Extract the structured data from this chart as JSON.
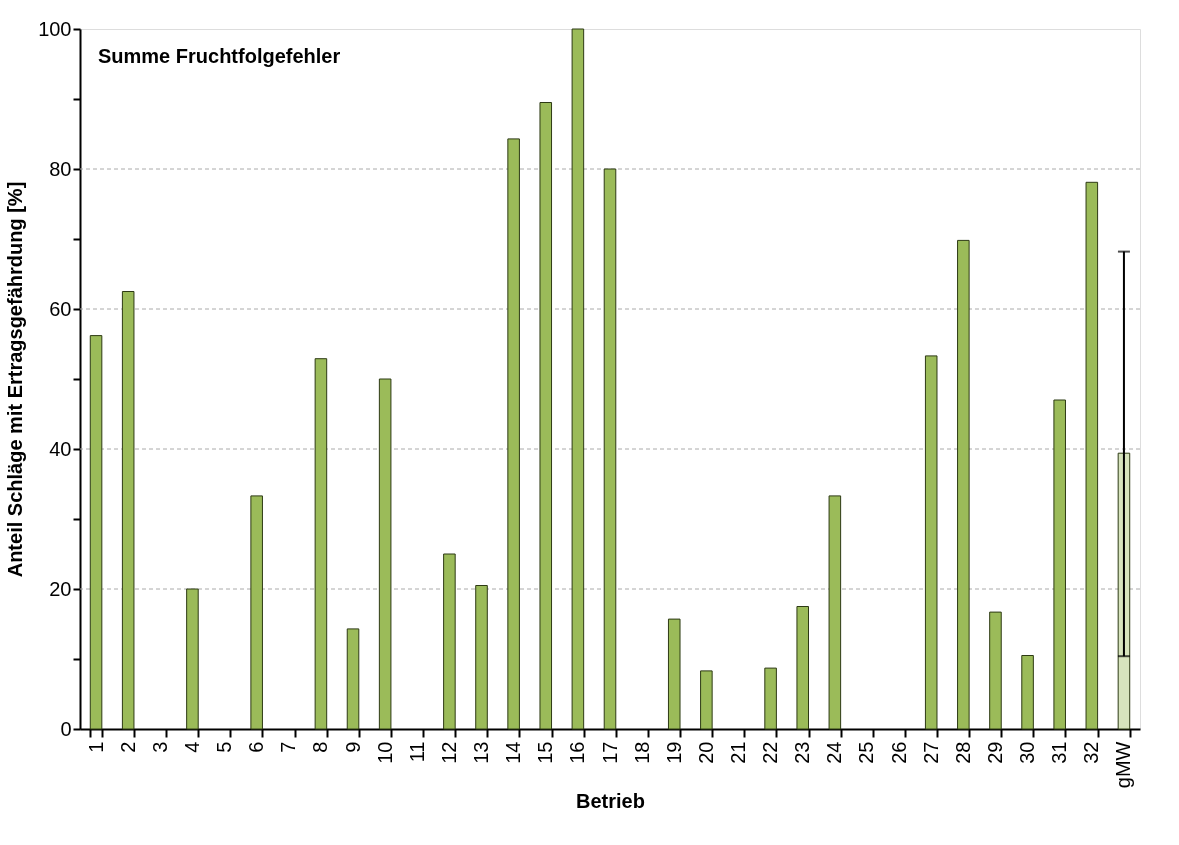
{
  "chart_data": {
    "type": "bar",
    "title": "Summe Fruchtfolgefehler",
    "xlabel": "Betrieb",
    "ylabel": "Anteil  Schläge mit Ertragsgefährdung  [%]",
    "categories": [
      "1",
      "2",
      "3",
      "4",
      "5",
      "6",
      "7",
      "8",
      "9",
      "10",
      "11",
      "12",
      "13",
      "14",
      "15",
      "16",
      "17",
      "18",
      "19",
      "20",
      "21",
      "22",
      "23",
      "24",
      "25",
      "26",
      "27",
      "28",
      "29",
      "30",
      "31",
      "32",
      "gMW"
    ],
    "values": [
      56.2,
      62.5,
      0,
      20,
      0,
      33.3,
      0,
      52.9,
      14.3,
      50,
      0,
      25,
      20.5,
      84.3,
      89.5,
      100,
      80,
      0,
      15.7,
      8.3,
      0,
      8.7,
      17.5,
      33.3,
      0,
      0,
      53.3,
      69.8,
      16.7,
      10.5,
      47,
      78.1,
      39.4
    ],
    "colors": [
      "#9bbb59",
      "#9bbb59",
      "#9bbb59",
      "#9bbb59",
      "#9bbb59",
      "#9bbb59",
      "#9bbb59",
      "#9bbb59",
      "#9bbb59",
      "#9bbb59",
      "#9bbb59",
      "#9bbb59",
      "#9bbb59",
      "#9bbb59",
      "#9bbb59",
      "#9bbb59",
      "#9bbb59",
      "#9bbb59",
      "#9bbb59",
      "#9bbb59",
      "#9bbb59",
      "#9bbb59",
      "#9bbb59",
      "#9bbb59",
      "#9bbb59",
      "#9bbb59",
      "#9bbb59",
      "#9bbb59",
      "#9bbb59",
      "#9bbb59",
      "#9bbb59",
      "#9bbb59",
      "#d7e4bd"
    ],
    "errors": [
      null,
      null,
      null,
      null,
      null,
      null,
      null,
      null,
      null,
      null,
      null,
      null,
      null,
      null,
      null,
      null,
      null,
      null,
      null,
      null,
      null,
      null,
      null,
      null,
      null,
      null,
      null,
      null,
      null,
      null,
      null,
      null,
      [
        10.4,
        68.2
      ]
    ],
    "ylim": [
      0,
      100
    ],
    "yticks": [
      0,
      {
        "value": 10,
        "label": null
      },
      20,
      {
        "value": 30,
        "label": null
      },
      40,
      {
        "value": 50,
        "label": null
      },
      60,
      {
        "value": 70,
        "label": null
      },
      80,
      {
        "value": 90,
        "label": null
      },
      100
    ],
    "grid": "y"
  }
}
